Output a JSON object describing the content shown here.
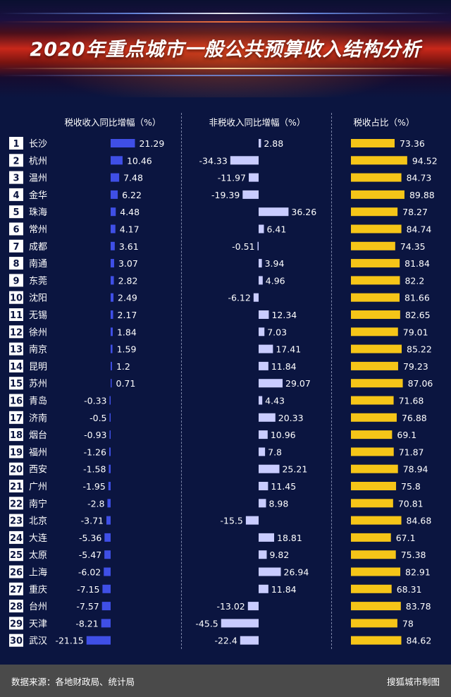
{
  "title": "2020年重点城市一般公共预算收入结构分析",
  "columns": {
    "tax_growth": "税收收入同比增幅（%）",
    "nontax_growth": "非税收入同比增幅（%）",
    "tax_share": "税收占比（%）"
  },
  "footer": {
    "source": "数据来源：各地财政局、统计局",
    "credit": "搜狐城市制图"
  },
  "colors": {
    "tax_growth_bar": "#3f4fe6",
    "nontax_growth_bar": "#c9ccff",
    "tax_share_bar": "#f5c518",
    "background": "#0b1540"
  },
  "chart_data": {
    "type": "bar",
    "categories": [
      "长沙",
      "杭州",
      "温州",
      "金华",
      "珠海",
      "常州",
      "成都",
      "南通",
      "东莞",
      "沈阳",
      "无锡",
      "徐州",
      "南京",
      "昆明",
      "苏州",
      "青岛",
      "济南",
      "烟台",
      "福州",
      "西安",
      "广州",
      "南宁",
      "北京",
      "大连",
      "太原",
      "上海",
      "重庆",
      "台州",
      "天津",
      "武汉"
    ],
    "ranks": [
      "1",
      "2",
      "3",
      "4",
      "5",
      "6",
      "7",
      "8",
      "9",
      "10",
      "11",
      "12",
      "13",
      "14",
      "15",
      "16",
      "17",
      "18",
      "19",
      "20",
      "21",
      "22",
      "23",
      "24",
      "25",
      "26",
      "27",
      "28",
      "29",
      "30"
    ],
    "series": [
      {
        "name": "税收收入同比增幅（%）",
        "values": [
          "21.29",
          "10.46",
          "7.48",
          "6.22",
          "4.48",
          "4.17",
          "3.61",
          "3.07",
          "2.82",
          "2.49",
          "2.17",
          "1.84",
          "1.59",
          "1.2",
          "0.71",
          "-0.33",
          "-0.5",
          "-0.93",
          "-1.26",
          "-1.58",
          "-1.95",
          "-2.8",
          "-3.71",
          "-5.36",
          "-5.47",
          "-6.02",
          "-7.15",
          "-7.57",
          "-8.21",
          "-21.15"
        ]
      },
      {
        "name": "非税收入同比增幅（%）",
        "values": [
          "2.88",
          "-34.33",
          "-11.97",
          "-19.39",
          "36.26",
          "6.41",
          "-0.51",
          "3.94",
          "4.96",
          "-6.12",
          "12.34",
          "7.03",
          "17.41",
          "11.84",
          "29.07",
          "4.43",
          "20.33",
          "10.96",
          "7.8",
          "25.21",
          "11.45",
          "8.98",
          "-15.5",
          "18.81",
          "9.82",
          "26.94",
          "11.84",
          "-13.02",
          "-45.5",
          "-22.4"
        ]
      },
      {
        "name": "税收占比（%）",
        "values": [
          "73.36",
          "94.52",
          "84.73",
          "89.88",
          "78.27",
          "84.74",
          "74.35",
          "81.84",
          "82.2",
          "81.66",
          "82.65",
          "79.01",
          "85.22",
          "79.23",
          "87.06",
          "71.68",
          "76.88",
          "69.1",
          "71.87",
          "78.94",
          "75.8",
          "70.81",
          "84.68",
          "67.1",
          "75.38",
          "82.91",
          "68.31",
          "83.78",
          "78",
          "84.62"
        ]
      }
    ]
  }
}
